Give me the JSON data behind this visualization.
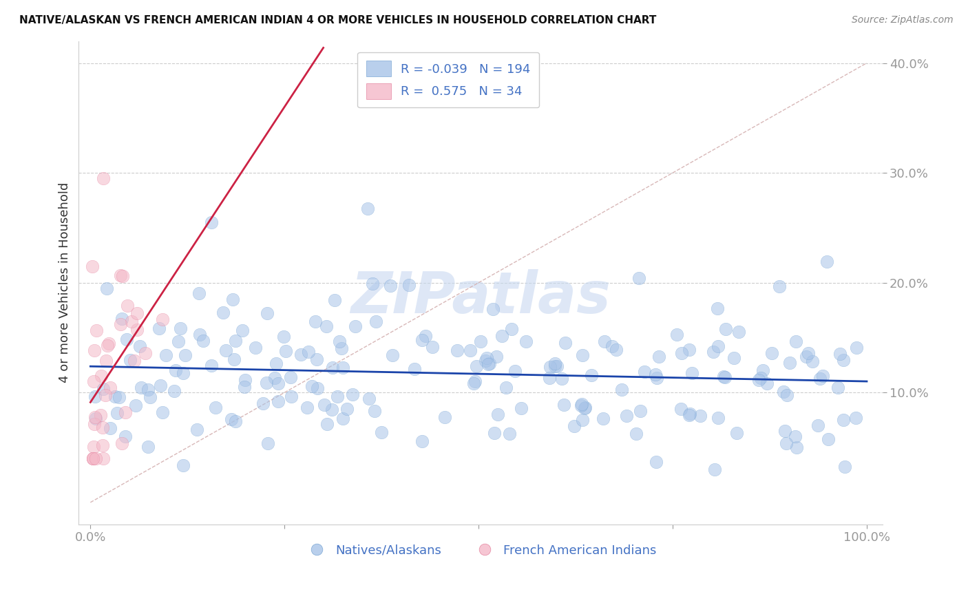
{
  "title": "NATIVE/ALASKAN VS FRENCH AMERICAN INDIAN 4 OR MORE VEHICLES IN HOUSEHOLD CORRELATION CHART",
  "source": "Source: ZipAtlas.com",
  "ylabel": "4 or more Vehicles in Household",
  "blue_R": -0.039,
  "blue_N": 194,
  "pink_R": 0.575,
  "pink_N": 34,
  "blue_color": "#a8c4e8",
  "blue_edge_color": "#6699cc",
  "pink_color": "#f4b8c8",
  "pink_edge_color": "#e07090",
  "blue_line_color": "#1a44aa",
  "pink_line_color": "#cc2244",
  "ref_line_color": "#d4b0b0",
  "grid_color": "#cccccc",
  "watermark": "ZIPatlas",
  "watermark_color": "#c8d8f0",
  "legend_label_blue": "Natives/Alaskans",
  "legend_label_pink": "French American Indians",
  "title_fontsize": 11,
  "tick_fontsize": 13,
  "legend_fontsize": 13,
  "ylabel_fontsize": 13,
  "dot_size": 180,
  "dot_alpha": 0.55
}
